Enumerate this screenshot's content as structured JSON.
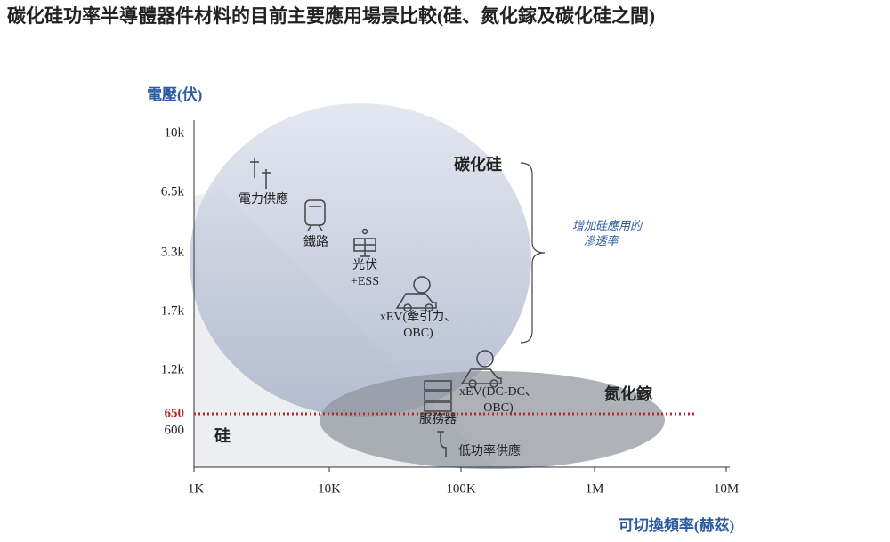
{
  "title": "碳化硅功率半導體器件材料的目前主要應用場景比較(硅、氮化鎵及碳化硅之間)",
  "y_axis": {
    "label": "電壓(伏)",
    "ticks": [
      "10k",
      "6.5k",
      "3.3k",
      "1.7k",
      "1.2k",
      "650",
      "600"
    ]
  },
  "x_axis": {
    "label": "可切換頻率(赫茲)",
    "ticks": [
      "1K",
      "10K",
      "100K",
      "1M",
      "10M"
    ]
  },
  "regions": {
    "sic": "碳化硅",
    "gan": "氮化鎵",
    "si": "硅"
  },
  "annotation": [
    "增加硅應用的",
    "滲透率"
  ],
  "applications": [
    {
      "lines": [
        "電力供應"
      ]
    },
    {
      "lines": [
        "鐵路"
      ]
    },
    {
      "lines": [
        "光伏",
        "+ESS"
      ]
    },
    {
      "lines": [
        "xEV(牽引力、",
        "OBC)"
      ]
    },
    {
      "lines": [
        "xEV(DC-DC、",
        "OBC)"
      ]
    },
    {
      "lines": [
        "服務器"
      ]
    },
    {
      "lines": [
        "低功率供應"
      ]
    }
  ]
}
